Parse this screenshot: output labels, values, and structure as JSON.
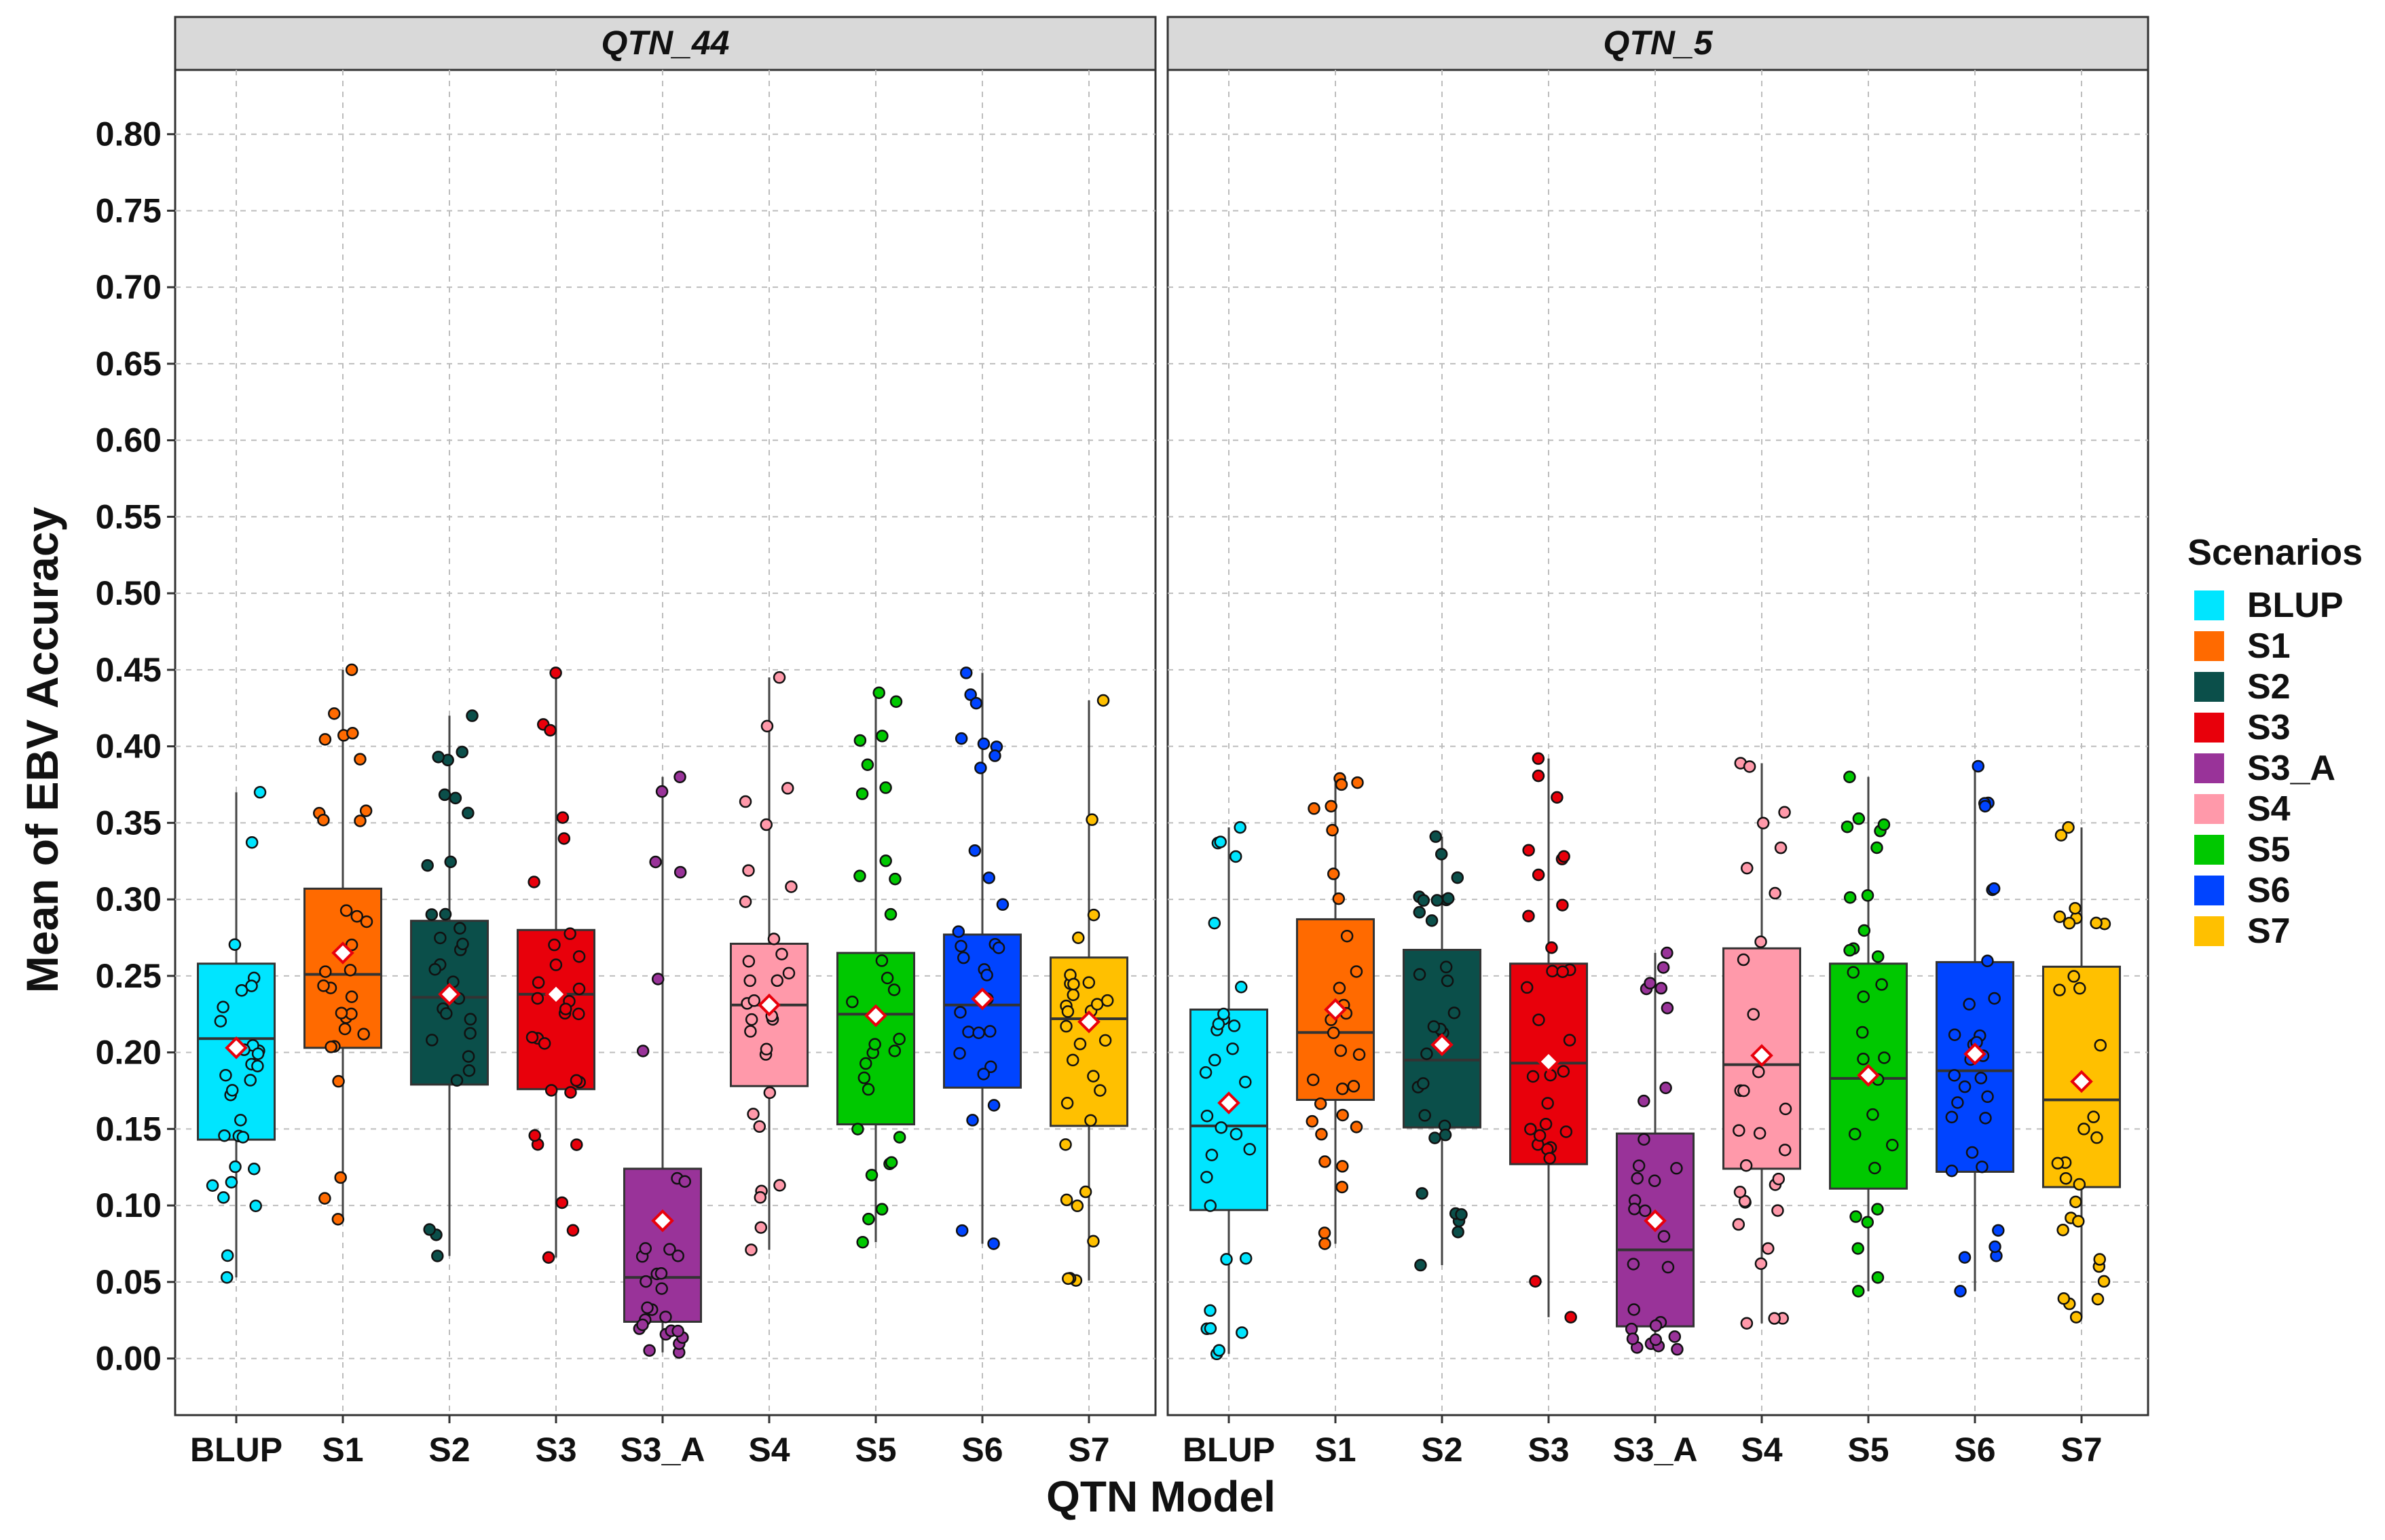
{
  "chart_data": {
    "type": "boxplot",
    "xlabel": "QTN Model",
    "ylabel": "Mean of EBV Accuracy",
    "ylim": [
      -0.037,
      0.842
    ],
    "yticks": [
      "0.00",
      "0.05",
      "0.10",
      "0.15",
      "0.20",
      "0.25",
      "0.30",
      "0.35",
      "0.40",
      "0.45",
      "0.50",
      "0.55",
      "0.60",
      "0.65",
      "0.70",
      "0.75",
      "0.80"
    ],
    "categories": [
      "BLUP",
      "S1",
      "S2",
      "S3",
      "S3_A",
      "S4",
      "S5",
      "S6",
      "S7"
    ],
    "legend": {
      "title": "Scenarios",
      "position": "right",
      "items": [
        {
          "label": "BLUP",
          "color": "#00E5FF"
        },
        {
          "label": "S1",
          "color": "#FF6A00"
        },
        {
          "label": "S2",
          "color": "#0B4F4A"
        },
        {
          "label": "S3",
          "color": "#E8000B"
        },
        {
          "label": "S3_A",
          "color": "#993399"
        },
        {
          "label": "S4",
          "color": "#FF99AA"
        },
        {
          "label": "S5",
          "color": "#00C800"
        },
        {
          "label": "S6",
          "color": "#0044FF"
        },
        {
          "label": "S7",
          "color": "#FFC000"
        }
      ]
    },
    "panels": [
      {
        "title": "QTN_44",
        "boxes": [
          {
            "category": "BLUP",
            "q1": 0.143,
            "median": 0.209,
            "q3": 0.258,
            "min": 0.053,
            "max": 0.37,
            "mean": 0.203
          },
          {
            "category": "S1",
            "q1": 0.203,
            "median": 0.251,
            "q3": 0.307,
            "min": 0.091,
            "max": 0.45,
            "mean": 0.265
          },
          {
            "category": "S2",
            "q1": 0.179,
            "median": 0.236,
            "q3": 0.286,
            "min": 0.067,
            "max": 0.42,
            "mean": 0.238
          },
          {
            "category": "S3",
            "q1": 0.176,
            "median": 0.238,
            "q3": 0.28,
            "min": 0.066,
            "max": 0.448,
            "mean": 0.238
          },
          {
            "category": "S3_A",
            "q1": 0.024,
            "median": 0.053,
            "q3": 0.124,
            "min": 0.004,
            "max": 0.38,
            "mean": 0.09
          },
          {
            "category": "S4",
            "q1": 0.178,
            "median": 0.231,
            "q3": 0.271,
            "min": 0.071,
            "max": 0.445,
            "mean": 0.231
          },
          {
            "category": "S5",
            "q1": 0.153,
            "median": 0.225,
            "q3": 0.265,
            "min": 0.076,
            "max": 0.435,
            "mean": 0.224
          },
          {
            "category": "S6",
            "q1": 0.177,
            "median": 0.231,
            "q3": 0.277,
            "min": 0.075,
            "max": 0.448,
            "mean": 0.235
          },
          {
            "category": "S7",
            "q1": 0.152,
            "median": 0.222,
            "q3": 0.262,
            "min": 0.051,
            "max": 0.43,
            "mean": 0.22
          }
        ]
      },
      {
        "title": "QTN_5",
        "boxes": [
          {
            "category": "BLUP",
            "q1": 0.097,
            "median": 0.152,
            "q3": 0.228,
            "min": 0.003,
            "max": 0.347,
            "mean": 0.167
          },
          {
            "category": "S1",
            "q1": 0.169,
            "median": 0.213,
            "q3": 0.287,
            "min": 0.075,
            "max": 0.379,
            "mean": 0.228
          },
          {
            "category": "S2",
            "q1": 0.151,
            "median": 0.195,
            "q3": 0.267,
            "min": 0.061,
            "max": 0.341,
            "mean": 0.205
          },
          {
            "category": "S3",
            "q1": 0.127,
            "median": 0.193,
            "q3": 0.258,
            "min": 0.027,
            "max": 0.392,
            "mean": 0.194
          },
          {
            "category": "S3_A",
            "q1": 0.021,
            "median": 0.071,
            "q3": 0.147,
            "min": 0.006,
            "max": 0.265,
            "mean": 0.09
          },
          {
            "category": "S4",
            "q1": 0.124,
            "median": 0.192,
            "q3": 0.268,
            "min": 0.023,
            "max": 0.389,
            "mean": 0.198
          },
          {
            "category": "S5",
            "q1": 0.111,
            "median": 0.183,
            "q3": 0.258,
            "min": 0.044,
            "max": 0.38,
            "mean": 0.185
          },
          {
            "category": "S6",
            "q1": 0.122,
            "median": 0.188,
            "q3": 0.259,
            "min": 0.044,
            "max": 0.387,
            "mean": 0.199
          },
          {
            "category": "S7",
            "q1": 0.112,
            "median": 0.169,
            "q3": 0.256,
            "min": 0.027,
            "max": 0.347,
            "mean": 0.181
          }
        ]
      }
    ]
  }
}
